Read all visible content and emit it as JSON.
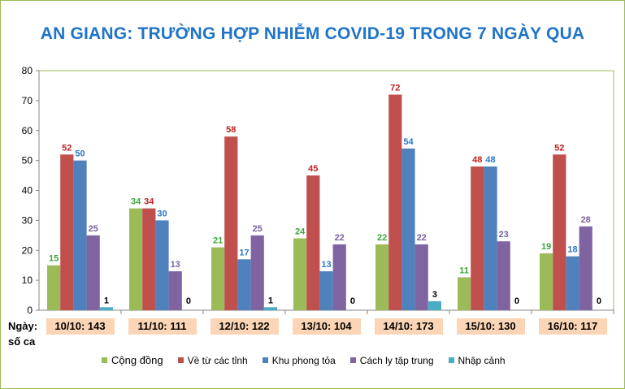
{
  "chart_data": {
    "type": "bar",
    "title": "AN GIANG: TRƯỜNG HỢP NHIỄM COVID-19 TRONG 7 NGÀY QUA",
    "xlabel": "Ngày: số ca",
    "xlabel_line1": "Ngày:",
    "xlabel_line2": "số ca",
    "ylim": [
      0,
      80
    ],
    "yticks": [
      "0",
      "10",
      "20",
      "30",
      "40",
      "50",
      "60",
      "70",
      "80"
    ],
    "categories": [
      "10/10: 143",
      "11/10: 111",
      "12/10: 122",
      "13/10: 104",
      "14/10: 173",
      "15/10: 130",
      "16/10: 117"
    ],
    "series": [
      {
        "name": "Cộng đồng",
        "color": "#9bbb59",
        "label_color": "#3aa63a",
        "values": [
          15,
          34,
          21,
          24,
          22,
          11,
          19
        ]
      },
      {
        "name": "Về từ các tỉnh",
        "color": "#c0504d",
        "label_color": "#c0201d",
        "values": [
          52,
          34,
          58,
          45,
          72,
          48,
          52
        ]
      },
      {
        "name": "Khu phong tỏa",
        "color": "#4f81bd",
        "label_color": "#2a78c8",
        "values": [
          50,
          30,
          17,
          13,
          54,
          48,
          18
        ]
      },
      {
        "name": "Cách ly tập trung",
        "color": "#8064a2",
        "label_color": "#7a5fa0",
        "values": [
          25,
          13,
          25,
          22,
          22,
          23,
          28
        ]
      },
      {
        "name": "Nhập cảnh",
        "color": "#4bacc6",
        "label_color": "#000000",
        "values": [
          1,
          0,
          1,
          0,
          3,
          0,
          0
        ]
      }
    ],
    "grid": false,
    "legend_position": "bottom"
  }
}
